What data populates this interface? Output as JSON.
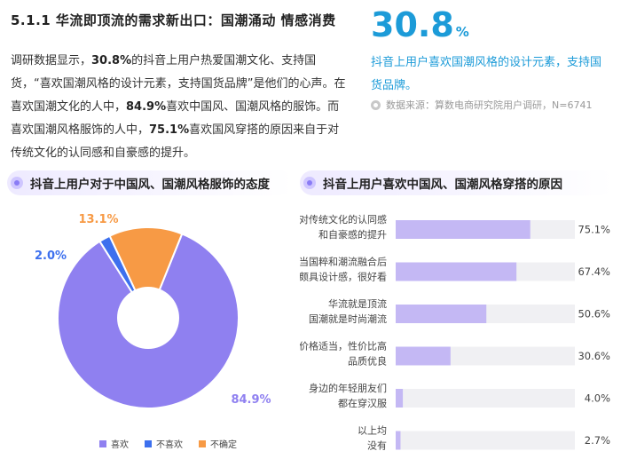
{
  "header": {
    "section_title": "5.1.1 华流即顶流的需求新出口：国潮涌动 情感消费"
  },
  "intro": {
    "part1": "调研数据显示，",
    "b1": "30.8%",
    "part2": "的抖音上用户热爱国潮文化、支持国货，“喜欢国潮风格的设计元素，支持国货品牌”是他们的心声。在喜欢国潮文化的人中，",
    "b2": "84.9%",
    "part3": "喜欢中国风、国潮风格的服饰。而喜欢国潮风格服饰的人中，",
    "b3": "75.1%",
    "part4": "喜欢国风穿搭的原因来自于对传统文化的认同感和自豪感的提升。"
  },
  "stat": {
    "value": "30.8",
    "unit": "%",
    "description": "抖音上用户喜欢国潮风格的设计元素，支持国货品牌。",
    "source": "数据来源：算数电商研究院用户调研，N=6741",
    "color": "#1c9bd8"
  },
  "panels": {
    "left_title": "抖音上用户对于中国风、国潮风格服饰的态度",
    "right_title": "抖音上用户喜欢中国风、国潮风格穿搭的原因"
  },
  "chart_data": [
    {
      "type": "pie",
      "donut": true,
      "slices": [
        {
          "label": "喜欢",
          "value": 84.9,
          "value_label": "84.9%",
          "color": "#8f80f0"
        },
        {
          "label": "不喜欢",
          "value": 2.0,
          "value_label": "2.0%",
          "color": "#3d70ee"
        },
        {
          "label": "不确定",
          "value": 13.1,
          "value_label": "13.1%",
          "color": "#f79a45"
        }
      ],
      "legend_position": "bottom"
    },
    {
      "type": "bar",
      "orientation": "horizontal",
      "categories": [
        [
          "对传统文化的认同感",
          "和自豪感的提升"
        ],
        [
          "当国粹和潮流融合后",
          "颇具设计感，很好看"
        ],
        [
          "华流就是顶流",
          "国潮就是时尚潮流"
        ],
        [
          "价格适当，性价比高",
          "品质优良"
        ],
        [
          "身边的年轻朋友们",
          "都在穿汉服"
        ],
        [
          "以上均",
          "没有"
        ]
      ],
      "values": [
        75.1,
        67.4,
        50.6,
        30.6,
        4.0,
        2.7
      ],
      "value_labels": [
        "75.1%",
        "67.4%",
        "50.6%",
        "30.6%",
        "4.0%",
        "2.7%"
      ],
      "xlim": [
        0,
        100
      ],
      "bar_color": "#c4b8f4",
      "track_color": "#f0f0f3"
    }
  ]
}
